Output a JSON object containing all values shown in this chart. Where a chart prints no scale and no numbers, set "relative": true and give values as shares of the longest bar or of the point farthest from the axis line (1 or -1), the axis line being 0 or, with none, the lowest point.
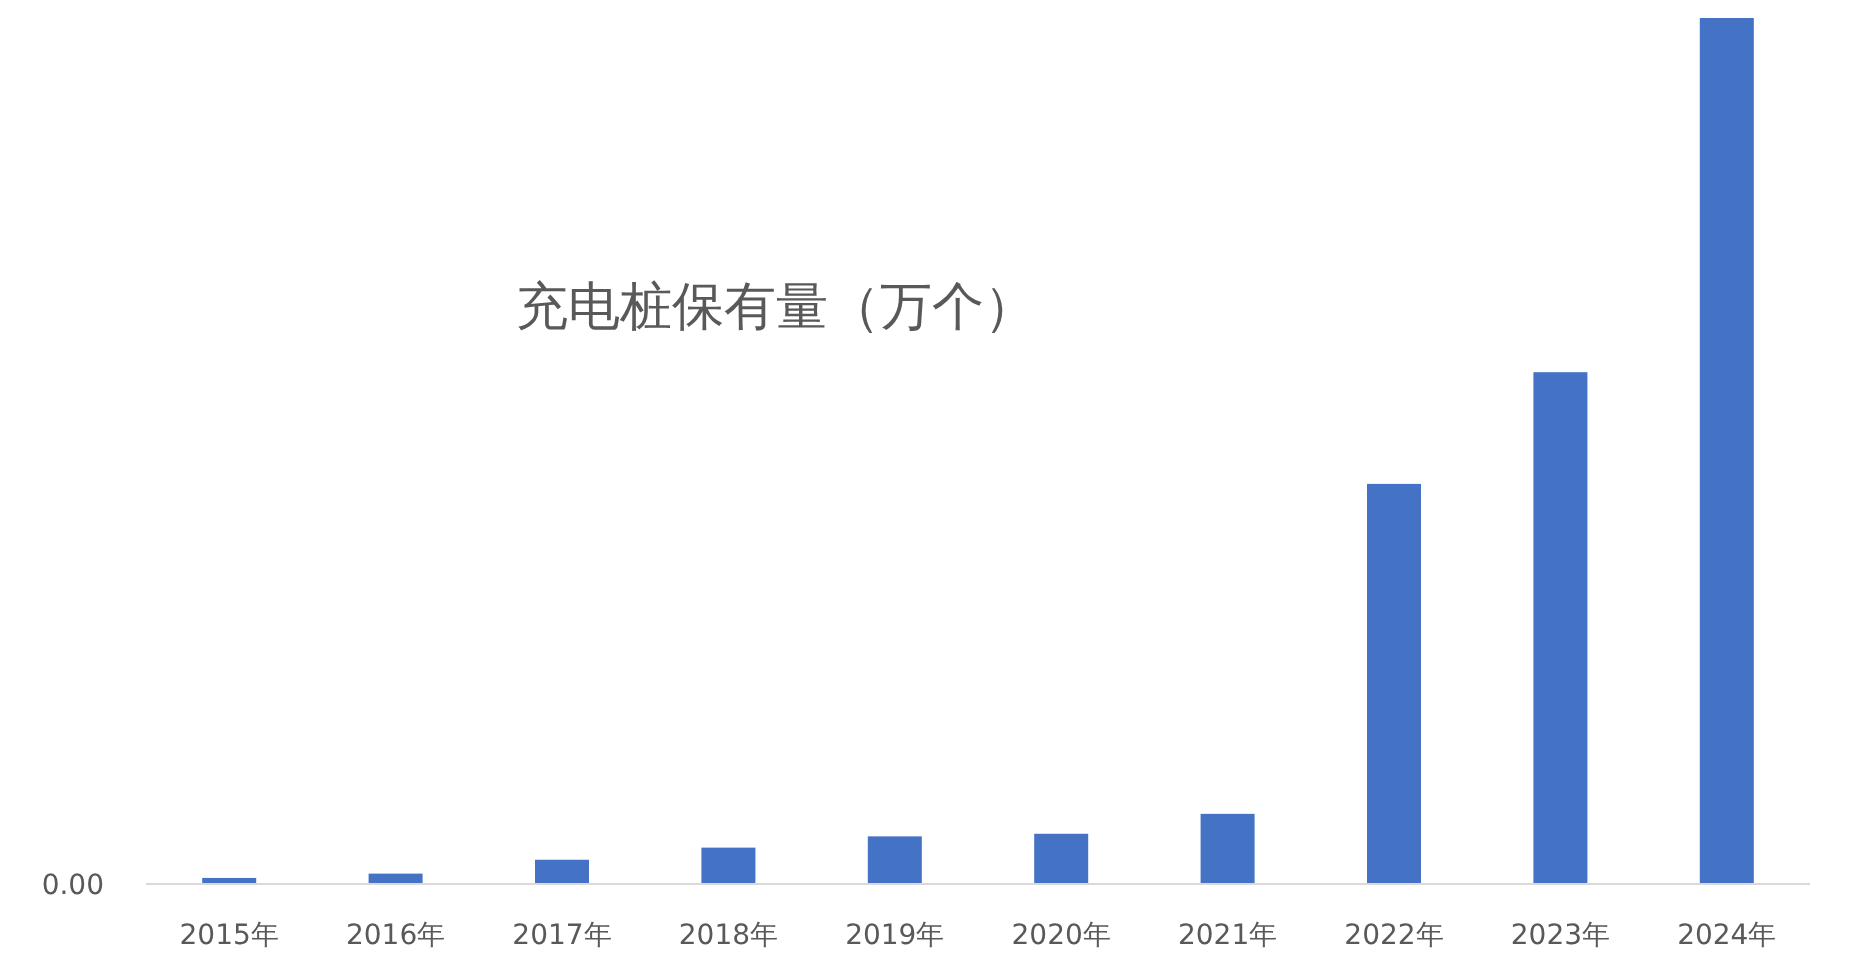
{
  "chart_data": {
    "type": "bar",
    "title": "充电桩保有量（万个）",
    "relative": true,
    "color": "#4472c4",
    "categories": [
      "2015年",
      "2016年",
      "2017年",
      "2018年",
      "2019年",
      "2020年",
      "2021年",
      "2022年",
      "2023年",
      "2024年"
    ],
    "values": [
      0.007,
      0.012,
      0.028,
      0.042,
      0.055,
      0.058,
      0.081,
      0.462,
      0.591,
      1
    ],
    "annotations": [
      "0.00"
    ]
  }
}
